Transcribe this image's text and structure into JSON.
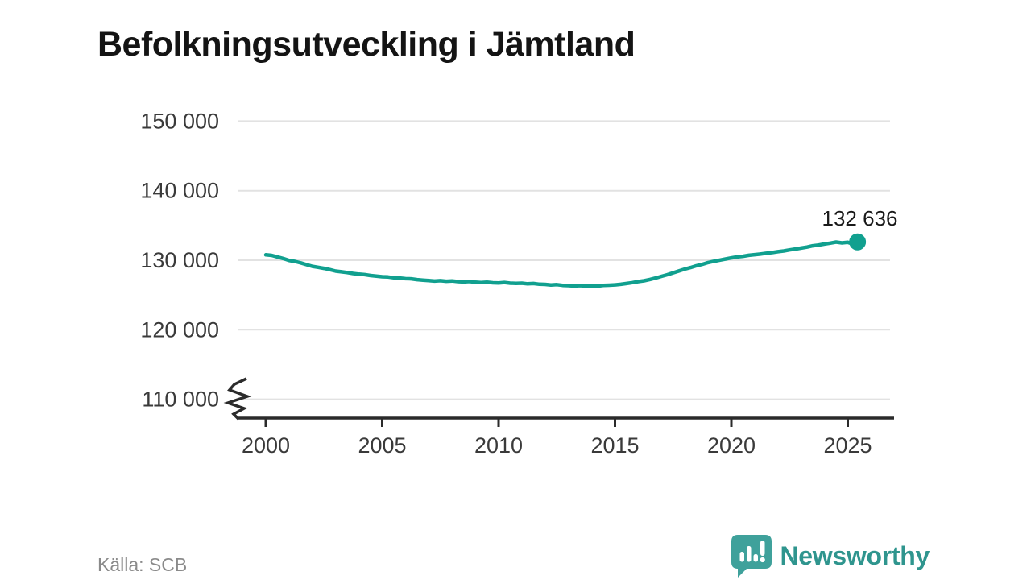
{
  "title": "Befolkningsutveckling i Jämtland",
  "source": "Källa: SCB",
  "logo": {
    "text": "Newsworthy"
  },
  "colors": {
    "line": "#11A08F",
    "logo_icon": "#3FA19B",
    "logo_text": "#2F958E",
    "gridline": "#E2E2E2",
    "axis": "#2B2B2B",
    "tick_label": "#3A3A3A",
    "title_text": "#141414",
    "source_text": "#8A8A8A",
    "end_label_text": "#1A1A1A"
  },
  "chart_data": {
    "type": "line",
    "title": "Befolkningsutveckling i Jämtland",
    "xlabel": "",
    "ylabel": "",
    "grid": "horizontal",
    "y_axis_break": true,
    "ylim": [
      110000,
      150000
    ],
    "x_range_years": [
      2000,
      2025.42
    ],
    "line_color": "#11A08F",
    "end_point": {
      "year": 2025.42,
      "value": 132636,
      "label": "132 636"
    },
    "yticks": [
      {
        "value": 150000,
        "label": "150 000"
      },
      {
        "value": 140000,
        "label": "140 000"
      },
      {
        "value": 130000,
        "label": "130 000"
      },
      {
        "value": 120000,
        "label": "120 000"
      },
      {
        "value": 110000,
        "label": "110 000"
      }
    ],
    "xticks": [
      {
        "value": 2000,
        "label": "2000"
      },
      {
        "value": 2005,
        "label": "2005"
      },
      {
        "value": 2010,
        "label": "2010"
      },
      {
        "value": 2015,
        "label": "2015"
      },
      {
        "value": 2020,
        "label": "2020"
      },
      {
        "value": 2025,
        "label": "2025"
      }
    ],
    "points": [
      [
        2000.0,
        130780
      ],
      [
        2000.25,
        130690
      ],
      [
        2000.5,
        130480
      ],
      [
        2000.75,
        130240
      ],
      [
        2001.0,
        129960
      ],
      [
        2001.25,
        129830
      ],
      [
        2001.5,
        129620
      ],
      [
        2001.75,
        129360
      ],
      [
        2002.0,
        129120
      ],
      [
        2002.25,
        128980
      ],
      [
        2002.5,
        128830
      ],
      [
        2002.75,
        128640
      ],
      [
        2003.0,
        128440
      ],
      [
        2003.25,
        128330
      ],
      [
        2003.5,
        128230
      ],
      [
        2003.75,
        128090
      ],
      [
        2004.0,
        127990
      ],
      [
        2004.25,
        127930
      ],
      [
        2004.5,
        127800
      ],
      [
        2004.75,
        127720
      ],
      [
        2005.0,
        127630
      ],
      [
        2005.25,
        127590
      ],
      [
        2005.5,
        127470
      ],
      [
        2005.75,
        127440
      ],
      [
        2006.0,
        127350
      ],
      [
        2006.25,
        127320
      ],
      [
        2006.5,
        127210
      ],
      [
        2006.75,
        127140
      ],
      [
        2007.0,
        127080
      ],
      [
        2007.25,
        127000
      ],
      [
        2007.5,
        127060
      ],
      [
        2007.75,
        126970
      ],
      [
        2008.0,
        127020
      ],
      [
        2008.25,
        126930
      ],
      [
        2008.5,
        126880
      ],
      [
        2008.75,
        126940
      ],
      [
        2009.0,
        126840
      ],
      [
        2009.25,
        126790
      ],
      [
        2009.5,
        126850
      ],
      [
        2009.75,
        126760
      ],
      [
        2010.0,
        126730
      ],
      [
        2010.25,
        126800
      ],
      [
        2010.5,
        126700
      ],
      [
        2010.75,
        126670
      ],
      [
        2011.0,
        126700
      ],
      [
        2011.25,
        126610
      ],
      [
        2011.5,
        126650
      ],
      [
        2011.75,
        126550
      ],
      [
        2012.0,
        126520
      ],
      [
        2012.25,
        126440
      ],
      [
        2012.5,
        126490
      ],
      [
        2012.75,
        126390
      ],
      [
        2013.0,
        126350
      ],
      [
        2013.25,
        126290
      ],
      [
        2013.5,
        126350
      ],
      [
        2013.75,
        126280
      ],
      [
        2014.0,
        126330
      ],
      [
        2014.25,
        126280
      ],
      [
        2014.5,
        126370
      ],
      [
        2014.75,
        126410
      ],
      [
        2015.0,
        126460
      ],
      [
        2015.25,
        126530
      ],
      [
        2015.5,
        126650
      ],
      [
        2015.75,
        126780
      ],
      [
        2016.0,
        126930
      ],
      [
        2016.25,
        127050
      ],
      [
        2016.5,
        127230
      ],
      [
        2016.75,
        127440
      ],
      [
        2017.0,
        127680
      ],
      [
        2017.25,
        127910
      ],
      [
        2017.5,
        128190
      ],
      [
        2017.75,
        128460
      ],
      [
        2018.0,
        128730
      ],
      [
        2018.25,
        128950
      ],
      [
        2018.5,
        129200
      ],
      [
        2018.75,
        129410
      ],
      [
        2019.0,
        129660
      ],
      [
        2019.25,
        129850
      ],
      [
        2019.5,
        130010
      ],
      [
        2019.75,
        130170
      ],
      [
        2020.0,
        130340
      ],
      [
        2020.25,
        130480
      ],
      [
        2020.5,
        130570
      ],
      [
        2020.75,
        130710
      ],
      [
        2021.0,
        130800
      ],
      [
        2021.25,
        130880
      ],
      [
        2021.5,
        131010
      ],
      [
        2021.75,
        131100
      ],
      [
        2022.0,
        131230
      ],
      [
        2022.25,
        131330
      ],
      [
        2022.5,
        131480
      ],
      [
        2022.75,
        131610
      ],
      [
        2023.0,
        131750
      ],
      [
        2023.25,
        131890
      ],
      [
        2023.5,
        132070
      ],
      [
        2023.75,
        132180
      ],
      [
        2024.0,
        132330
      ],
      [
        2024.25,
        132460
      ],
      [
        2024.5,
        132610
      ],
      [
        2024.75,
        132490
      ],
      [
        2025.0,
        132570
      ],
      [
        2025.25,
        132310
      ],
      [
        2025.42,
        132636
      ]
    ]
  }
}
